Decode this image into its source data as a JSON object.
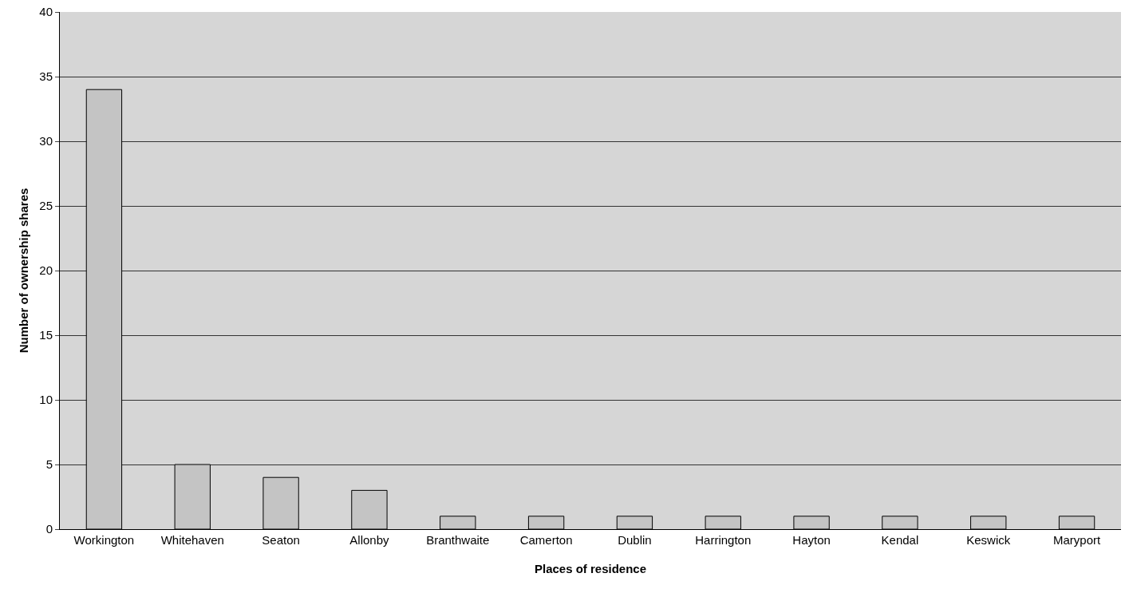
{
  "chart_data": {
    "type": "bar",
    "xlabel": "Places of residence",
    "ylabel": "Number of ownership shares",
    "categories": [
      "Workington",
      "Whitehaven",
      "Seaton",
      "Allonby",
      "Branthwaite",
      "Camerton",
      "Dublin",
      "Harrington",
      "Hayton",
      "Kendal",
      "Keswick",
      "Maryport"
    ],
    "values": [
      34,
      5,
      4,
      3,
      1,
      1,
      1,
      1,
      1,
      1,
      1,
      1
    ],
    "color": "#c4c4c4",
    "ylim": [
      0,
      40
    ],
    "yticks": [
      0,
      5,
      10,
      15,
      20,
      25,
      30,
      35,
      40
    ],
    "grid": "y"
  }
}
